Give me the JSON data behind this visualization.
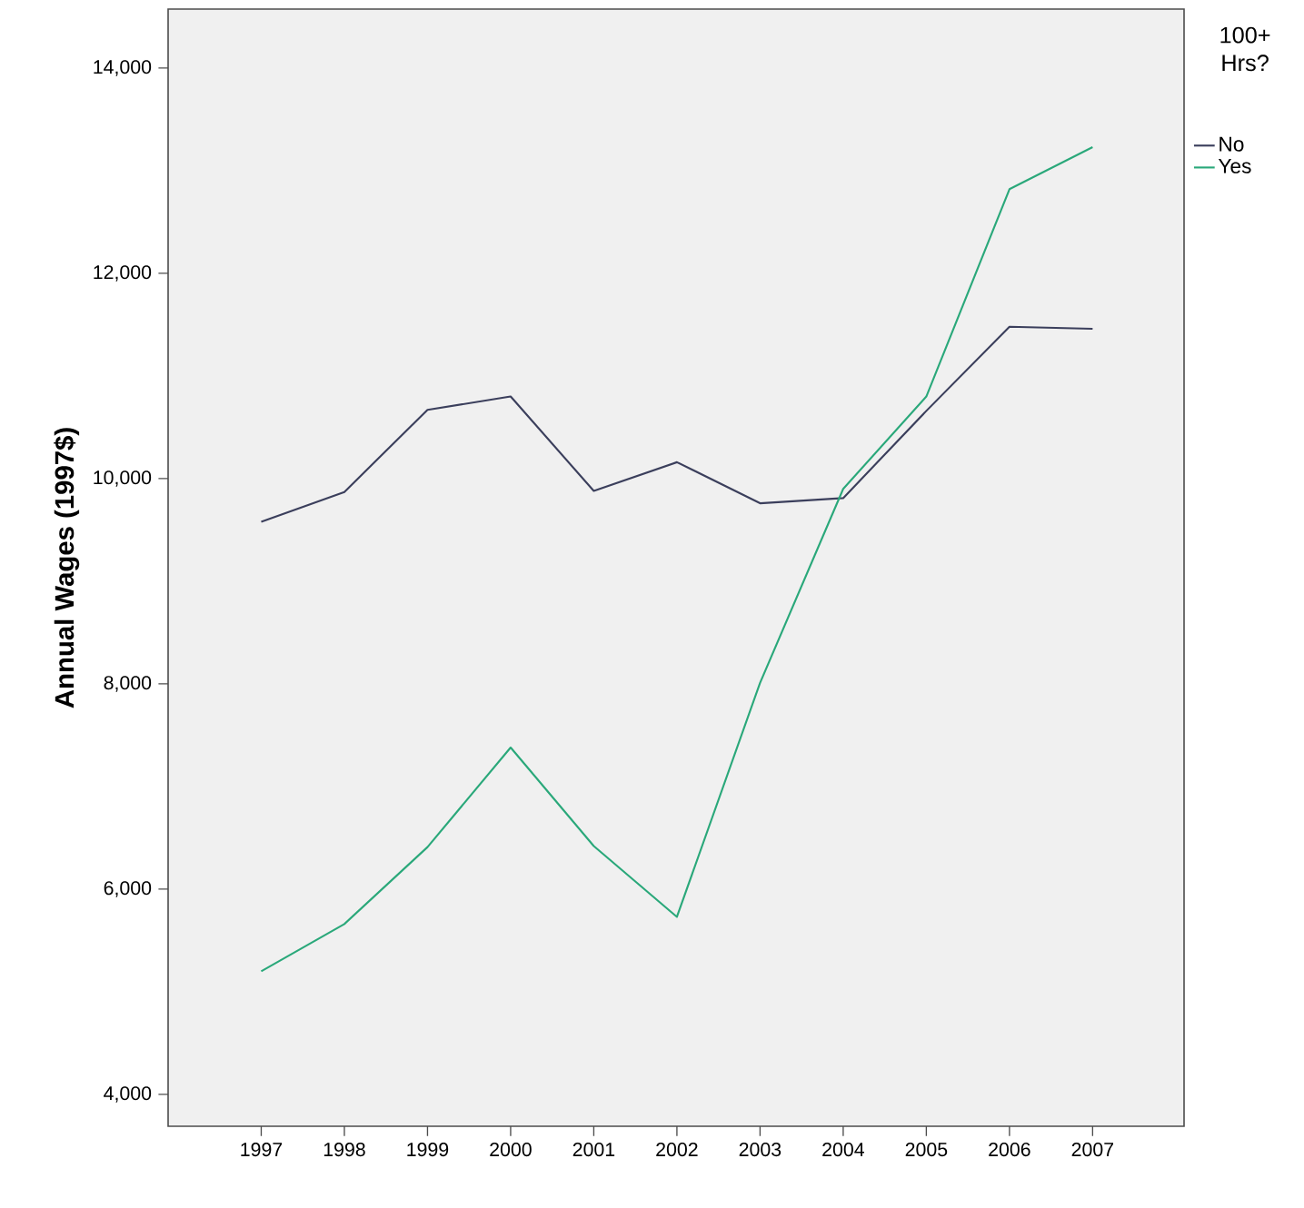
{
  "chart_data": {
    "type": "line",
    "ylabel": "Annual Wages (1997$)",
    "legend_title": "100+ Hrs?",
    "legend": "right",
    "grid": false,
    "marker": "none",
    "line_style": "solid",
    "x": [
      1997,
      1998,
      1999,
      2000,
      2001,
      2002,
      2003,
      2004,
      2005,
      2006,
      2007
    ],
    "xlim": [
      1995.88,
      2008.1
    ],
    "xticks": [
      1997,
      1998,
      1999,
      2000,
      2001,
      2002,
      2003,
      2004,
      2005,
      2006,
      2007
    ],
    "ylim": [
      3690,
      14575
    ],
    "yticks": [
      {
        "value": 4000,
        "label": "4,000"
      },
      {
        "value": 6000,
        "label": "6,000"
      },
      {
        "value": 8000,
        "label": "8,000"
      },
      {
        "value": 10000,
        "label": "10,000"
      },
      {
        "value": 12000,
        "label": "12,000"
      },
      {
        "value": 14000,
        "label": "14,000"
      }
    ],
    "series": [
      {
        "name": "No",
        "color": "#3b3f5c",
        "values": [
          9580,
          9870,
          10670,
          10800,
          9880,
          10160,
          9760,
          9810,
          10660,
          11480,
          11460
        ]
      },
      {
        "name": "Yes",
        "color": "#2aa87a",
        "values": [
          5200,
          5660,
          6410,
          7380,
          6420,
          5730,
          8010,
          9900,
          10800,
          12820,
          13230
        ]
      }
    ]
  }
}
